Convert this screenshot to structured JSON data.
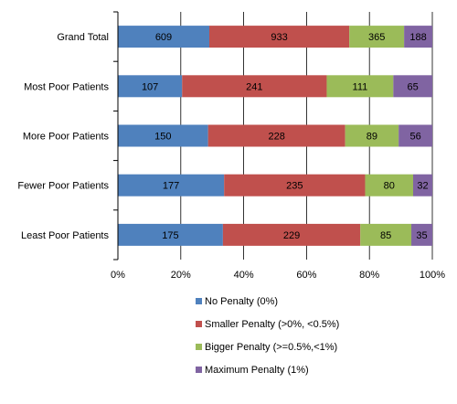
{
  "chart_data": {
    "type": "bar",
    "orientation": "horizontal",
    "stacked": "percent",
    "categories": [
      "Grand Total",
      "Most Poor Patients",
      "More Poor Patients",
      "Fewer Poor Patients",
      "Least Poor Patients"
    ],
    "series": [
      {
        "name": "No Penalty (0%)",
        "color": "#4F81BD",
        "values": [
          609,
          107,
          150,
          177,
          175
        ]
      },
      {
        "name": "Smaller Penalty (>0%, <0.5%)",
        "color": "#C0504D",
        "values": [
          933,
          241,
          228,
          235,
          229
        ]
      },
      {
        "name": "Bigger Penalty (>=0.5%,<1%)",
        "color": "#9BBB59",
        "values": [
          365,
          111,
          89,
          80,
          85
        ]
      },
      {
        "name": "Maximum Penalty (1%)",
        "color": "#8064A2",
        "values": [
          188,
          65,
          56,
          32,
          35
        ]
      }
    ],
    "xticks": [
      "0%",
      "20%",
      "40%",
      "60%",
      "80%",
      "100%"
    ],
    "xlim": [
      0,
      100
    ],
    "grid": true,
    "legend_position": "bottom"
  }
}
